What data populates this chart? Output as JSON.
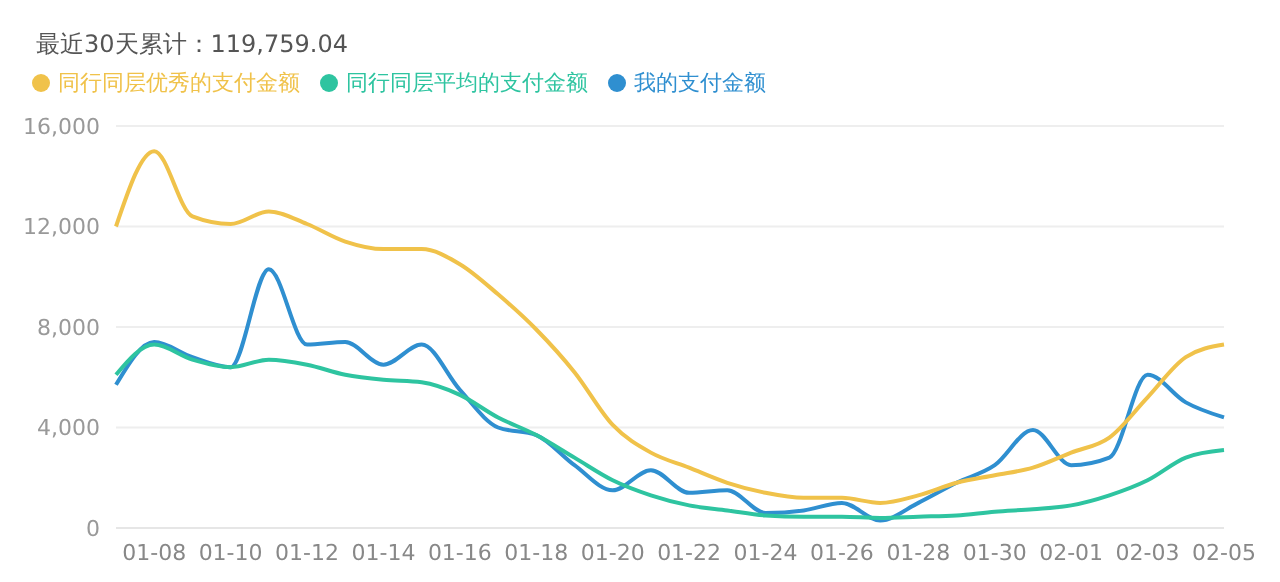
{
  "chart_data": {
    "type": "line",
    "title": "最近30天累计：119,759.04",
    "categories": [
      null,
      "01-08",
      null,
      "01-10",
      null,
      "01-12",
      null,
      "01-14",
      null,
      "01-16",
      null,
      "01-18",
      null,
      "01-20",
      null,
      "01-22",
      null,
      "01-24",
      null,
      "01-26",
      null,
      "01-28",
      null,
      "01-30",
      null,
      "02-01",
      null,
      "02-03",
      null,
      "02-05"
    ],
    "series": [
      {
        "name": "我的支付金额",
        "color": "#2f8fd0",
        "values": [
          5700,
          7400,
          6800,
          6400,
          10300,
          7300,
          7400,
          6500,
          7300,
          5500,
          4000,
          3700,
          2500,
          1500,
          2300,
          1400,
          1500,
          600,
          700,
          1000,
          300,
          1000,
          1800,
          2500,
          3900,
          2500,
          2800,
          6100,
          5000,
          4400
        ]
      },
      {
        "name": "同行同层平均的支付金额",
        "color": "#2ec4a0",
        "values": [
          6100,
          7300,
          6700,
          6400,
          6700,
          6500,
          6100,
          5900,
          5800,
          5300,
          4400,
          3700,
          2800,
          1900,
          1300,
          900,
          700,
          500,
          450,
          450,
          400,
          450,
          500,
          650,
          750,
          900,
          1300,
          1900,
          2800,
          3100
        ]
      },
      {
        "name": "同行同层优秀的支付金额",
        "color": "#f0c24a",
        "values": [
          12000,
          15000,
          12400,
          12100,
          12600,
          12100,
          11400,
          11100,
          11100,
          10500,
          9300,
          7900,
          6200,
          4100,
          3000,
          2400,
          1800,
          1400,
          1200,
          1200,
          1000,
          1300,
          1800,
          2100,
          2400,
          3000,
          3600,
          5200,
          6800,
          7300
        ]
      }
    ],
    "ylim": [
      0,
      16000
    ],
    "yticks": [
      {
        "value": 0,
        "label": "0"
      },
      {
        "value": 4000,
        "label": "4,000"
      },
      {
        "value": 8000,
        "label": "8,000"
      },
      {
        "value": 12000,
        "label": "12,000"
      },
      {
        "value": 16000,
        "label": "16,000"
      }
    ],
    "grid": "y",
    "legend": "top left",
    "marker": "none",
    "line_style": "solid"
  }
}
